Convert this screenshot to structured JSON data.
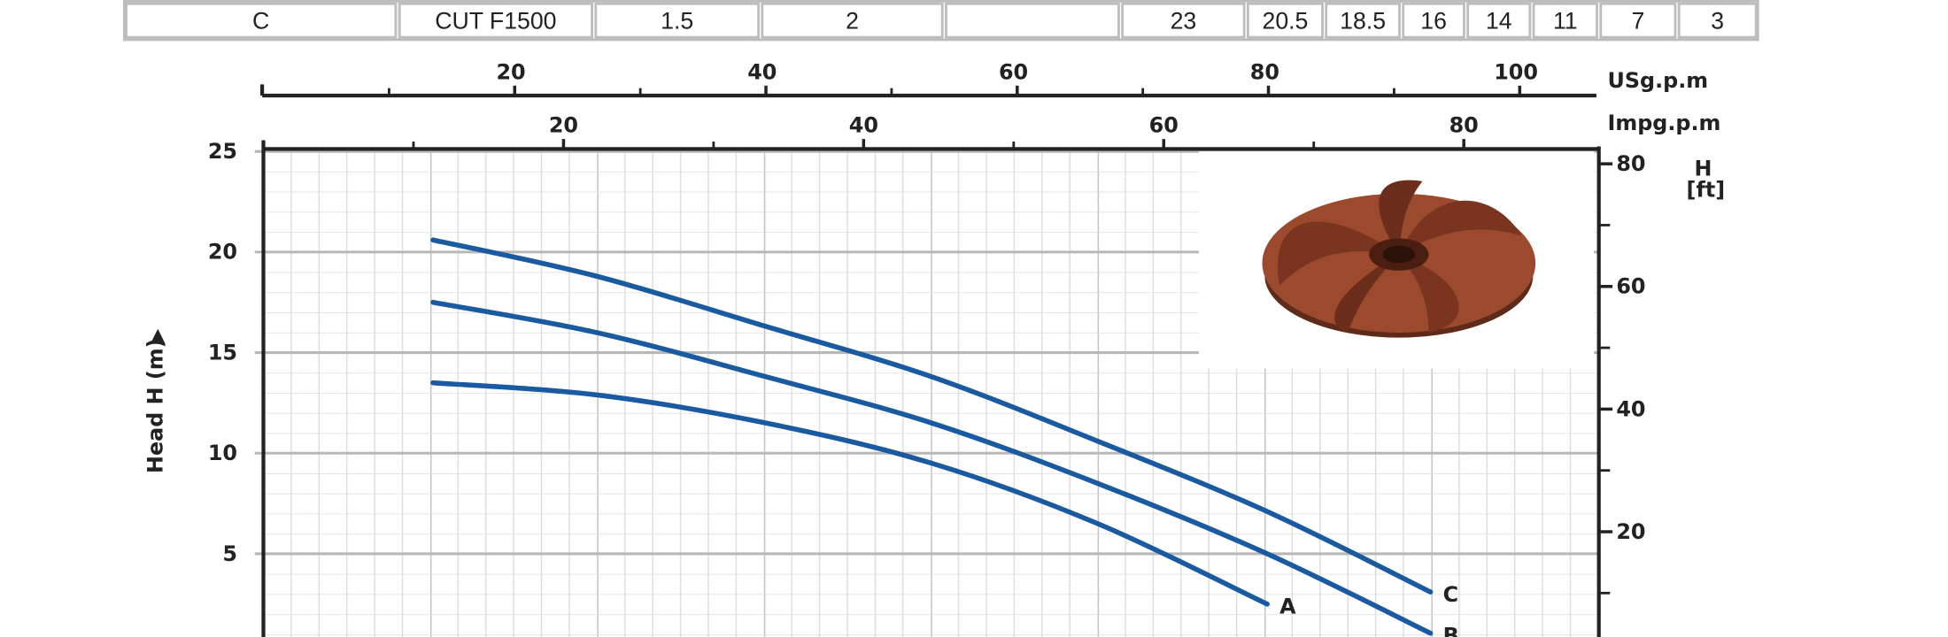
{
  "table": {
    "rows": [
      [
        "C",
        "CUT F1500",
        "1.5",
        "2",
        "23",
        "20.5",
        "18.5",
        "16",
        "14",
        "11",
        "7",
        "3"
      ]
    ]
  },
  "chart_data": {
    "type": "line",
    "y_label": "Head H (m)",
    "x_label": "USg.p.m",
    "x2_label": "Impg.p.m",
    "y2_label": [
      "H",
      "[ft]"
    ],
    "xlim": [
      0,
      106.3
    ],
    "xticks": [
      20,
      40,
      60,
      80,
      100
    ],
    "x_minor_ticks": [
      10,
      30,
      50,
      70,
      90
    ],
    "x2lim": [
      0,
      89
    ],
    "x2ticks": [
      20,
      40,
      60,
      80
    ],
    "x2_minor_ticks": [
      10,
      30,
      50,
      70
    ],
    "ylim": [
      1,
      25
    ],
    "yticks": [
      5,
      10,
      15,
      20,
      25
    ],
    "y2lim": [
      3.28,
      82.02
    ],
    "y2ticks": [
      20,
      40,
      60,
      80
    ],
    "y2_minor_ticks": [
      10,
      30,
      50,
      70
    ],
    "grid": true,
    "x": [
      13.5,
      26.5,
      40,
      53.2,
      66.4,
      79.9,
      92.9
    ],
    "series": [
      {
        "name": "A",
        "color": "#1a5aa0",
        "values": [
          13.5,
          12.9,
          11.5,
          9.5,
          6.5,
          2.5,
          null
        ]
      },
      {
        "name": "B",
        "color": "#1a5aa0",
        "values": [
          17.5,
          16.0,
          13.8,
          11.5,
          8.5,
          5.0,
          1.05
        ]
      },
      {
        "name": "C",
        "color": "#1a5aa0",
        "values": [
          20.6,
          18.8,
          16.3,
          13.8,
          10.6,
          7.1,
          3.1
        ]
      }
    ]
  }
}
